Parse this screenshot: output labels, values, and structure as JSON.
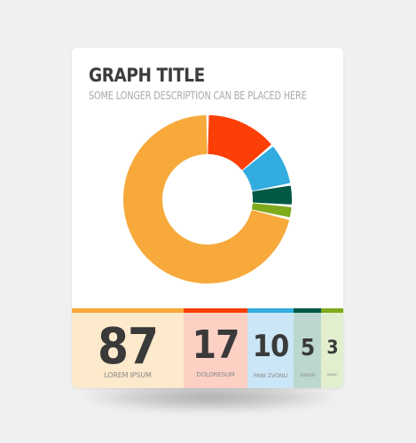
{
  "chart_data": {
    "type": "pie",
    "title": "GRAPH TITLE",
    "subtitle": "SOME LONGER DESCRIPTION CAN BE PLACED HERE",
    "categories": [
      "LOREM IPSUM",
      "DOLORESUM",
      "PANI ZVONU",
      "HONSON",
      "DANDO"
    ],
    "values": [
      87,
      17,
      10,
      5,
      3
    ],
    "colors": [
      "#f7a93b",
      "#fb3f07",
      "#33ace0",
      "#005a45",
      "#7faa1c"
    ],
    "backgrounds": [
      "#fde9cb",
      "#fdd0c4",
      "#cbe6f6",
      "#bcd7d0",
      "#e2efcf"
    ]
  },
  "stats": [
    {
      "value": "87",
      "label": "LOREM IPSUM"
    },
    {
      "value": "17",
      "label": "DOLORESUM"
    },
    {
      "value": "10",
      "label": "PANI ZVONU"
    },
    {
      "value": "5",
      "label": "HONSON"
    },
    {
      "value": "3",
      "label": "DANDO"
    }
  ]
}
